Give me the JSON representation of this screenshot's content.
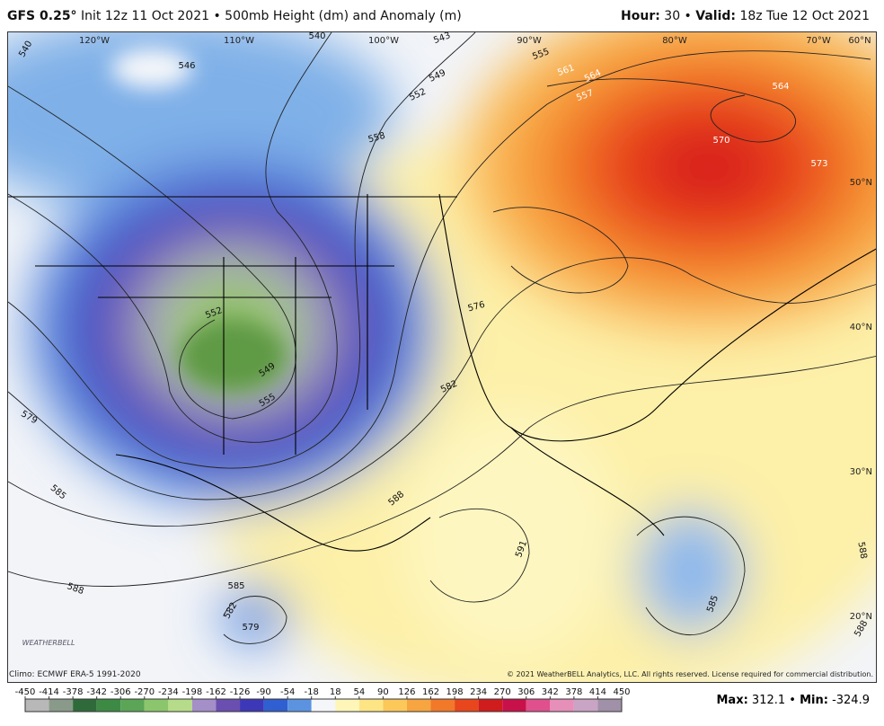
{
  "header": {
    "model": "GFS 0.25°",
    "title": "Init 12z 11 Oct 2021 • 500mb Height (dm) and Anomaly (m)",
    "hour_label": "Hour:",
    "hour": "30 •",
    "valid_label": "Valid:",
    "valid": "18z Tue 12 Oct 2021"
  },
  "map": {
    "longitude_labels": [
      "120°W",
      "110°W",
      "100°W",
      "90°W",
      "80°W",
      "70°W",
      "60°N"
    ],
    "latitude_labels": [
      "50°N",
      "40°N",
      "30°N",
      "20°N"
    ],
    "contour_labels": [
      540,
      546,
      540,
      543,
      555,
      561,
      564,
      557,
      564,
      549,
      552,
      558,
      570,
      573,
      576,
      552,
      549,
      555,
      582,
      579,
      585,
      588,
      588,
      591,
      585,
      582,
      579,
      588,
      588,
      585
    ],
    "logo": "WEATHERBELL"
  },
  "footer": {
    "climo": "Climo: ECMWF ERA-5 1991-2020",
    "copyright": "© 2021 WeatherBELL Analytics, LLC. All rights reserved. License required for commercial distribution."
  },
  "colorbar": {
    "ticks": [
      -450,
      -414,
      -378,
      -342,
      -306,
      -270,
      -234,
      -198,
      -162,
      -126,
      -90,
      -54,
      -18,
      18,
      54,
      90,
      126,
      162,
      198,
      234,
      270,
      306,
      342,
      378,
      414,
      450
    ],
    "colors": [
      "#b8b8b8",
      "#8a9a8a",
      "#2f6b3a",
      "#3d8a45",
      "#5aa556",
      "#8cc66c",
      "#b6dc8a",
      "#a48fc8",
      "#6a4fb0",
      "#3d38b8",
      "#2f5fd0",
      "#5b93e0",
      "#f4f6fa",
      "#fdf6b8",
      "#fde585",
      "#fcc85a",
      "#f7a540",
      "#f2782a",
      "#e8461c",
      "#d01c1c",
      "#c8104a",
      "#e0508c",
      "#e68fb8",
      "#c9a4c4",
      "#a090a8"
    ]
  },
  "stats": {
    "max_label": "Max:",
    "max": 312.1,
    "min_label": "Min:",
    "min": -324.9
  }
}
